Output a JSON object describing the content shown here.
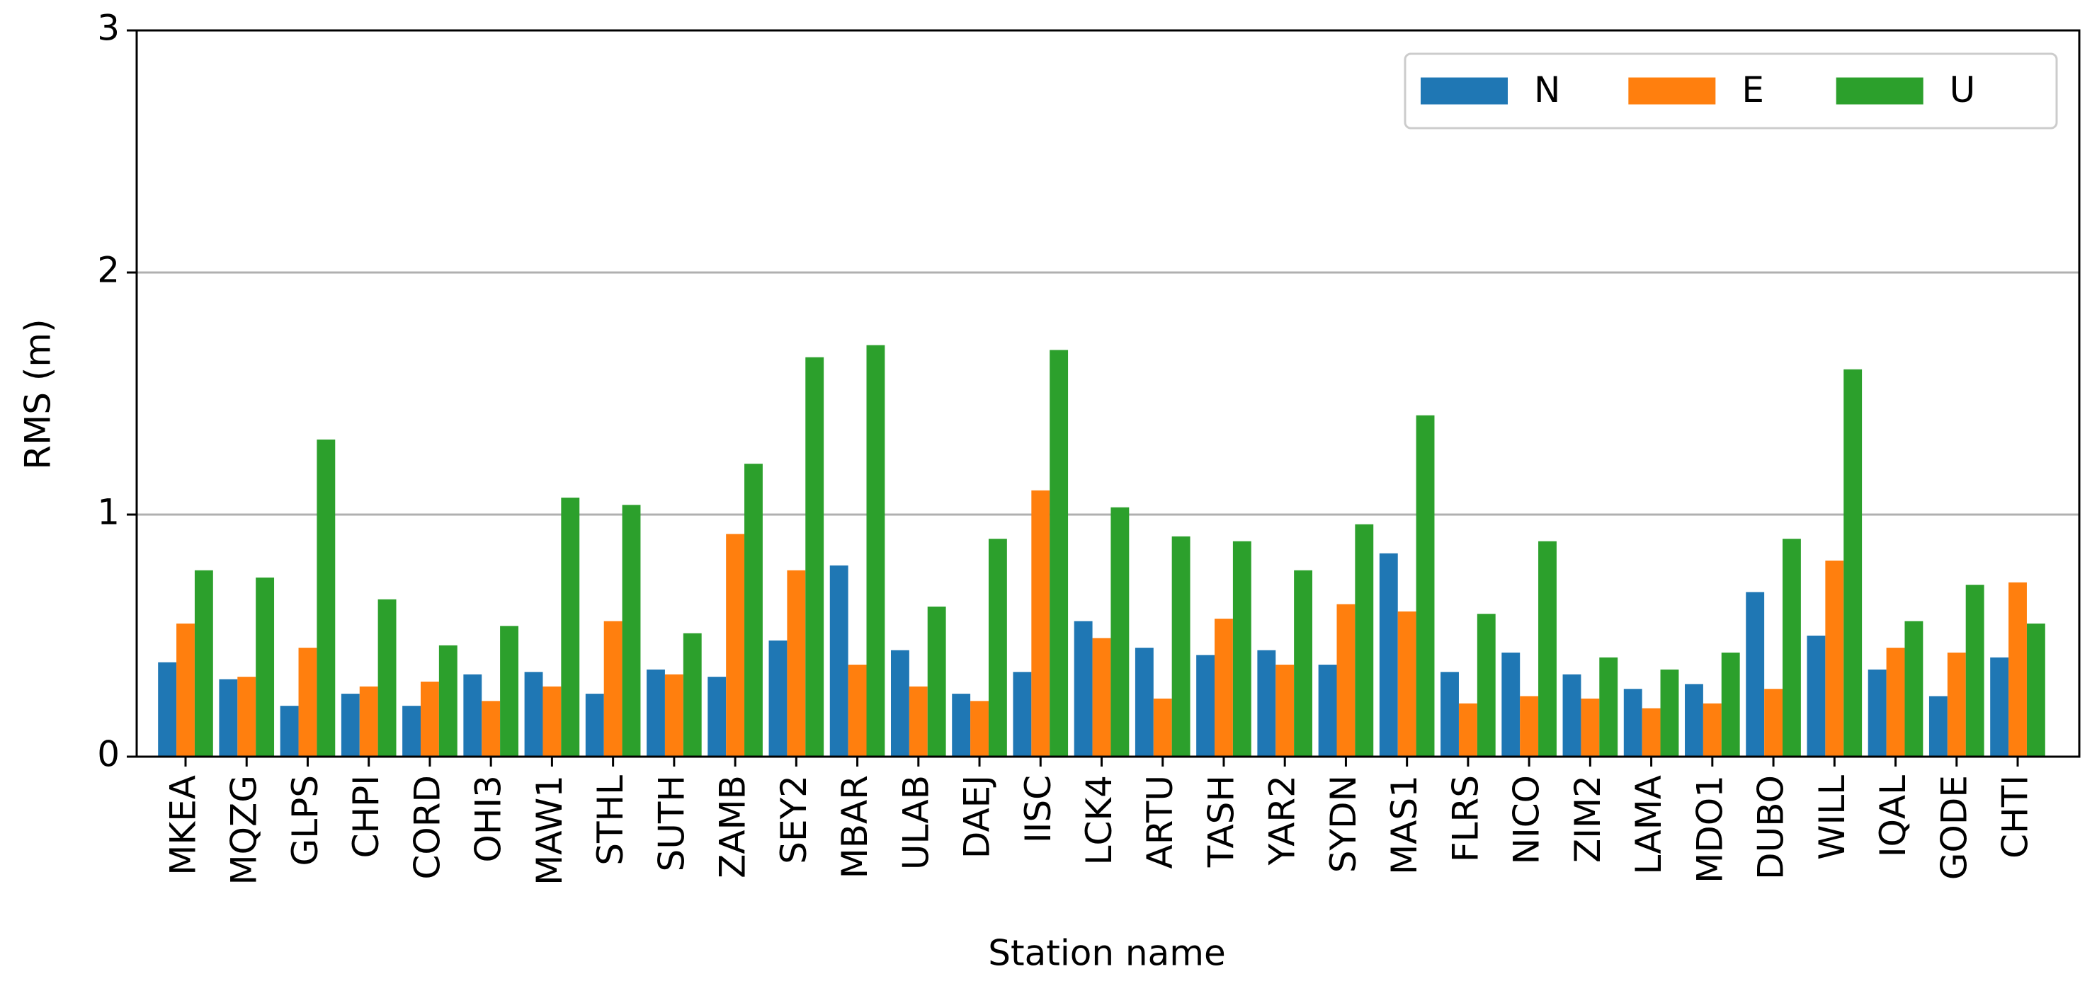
{
  "chart_data": {
    "type": "bar",
    "x_label": "Station name",
    "y_label": "RMS (m)",
    "categories": [
      "MKEA",
      "MQZG",
      "GLPS",
      "CHPI",
      "CORD",
      "OHI3",
      "MAW1",
      "STHL",
      "SUTH",
      "ZAMB",
      "SEY2",
      "MBAR",
      "ULAB",
      "DAEJ",
      "IISC",
      "LCK4",
      "ARTU",
      "TASH",
      "YAR2",
      "SYDN",
      "MAS1",
      "FLRS",
      "NICO",
      "ZIM2",
      "LAMA",
      "MDO1",
      "DUBO",
      "WILL",
      "IQAL",
      "GODE",
      "CHTI"
    ],
    "series": [
      {
        "name": "N",
        "color": "#1f77b4",
        "values": [
          0.39,
          0.32,
          0.21,
          0.26,
          0.21,
          0.34,
          0.35,
          0.26,
          0.36,
          0.33,
          0.48,
          0.79,
          0.44,
          0.26,
          0.35,
          0.56,
          0.45,
          0.42,
          0.44,
          0.38,
          0.84,
          0.35,
          0.43,
          0.34,
          0.28,
          0.3,
          0.68,
          0.5,
          0.36,
          0.25,
          0.41
        ]
      },
      {
        "name": "E",
        "color": "#ff7f0e",
        "values": [
          0.55,
          0.33,
          0.45,
          0.29,
          0.31,
          0.23,
          0.29,
          0.56,
          0.34,
          0.92,
          0.77,
          0.38,
          0.29,
          0.23,
          1.1,
          0.49,
          0.24,
          0.57,
          0.38,
          0.63,
          0.6,
          0.22,
          0.25,
          0.24,
          0.2,
          0.22,
          0.28,
          0.81,
          0.45,
          0.43,
          0.72
        ]
      },
      {
        "name": "U",
        "color": "#2ca02c",
        "values": [
          0.77,
          0.74,
          1.31,
          0.65,
          0.46,
          0.54,
          1.07,
          1.04,
          0.51,
          1.21,
          1.65,
          1.7,
          0.62,
          0.9,
          1.68,
          1.03,
          0.91,
          0.89,
          0.77,
          0.96,
          1.41,
          0.59,
          0.89,
          0.41,
          0.36,
          0.43,
          0.9,
          1.6,
          0.56,
          0.71,
          0.55
        ]
      }
    ],
    "ylim": [
      0,
      3
    ],
    "yticks": [
      0,
      1,
      2,
      3
    ],
    "grid": true,
    "legend": "upper right"
  }
}
